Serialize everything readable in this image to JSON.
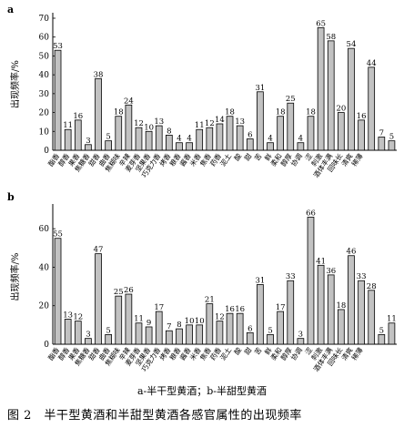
{
  "chart_data": [
    {
      "type": "bar",
      "panel_label": "a",
      "ylabel": "出现频率/%",
      "ylim": [
        0,
        70
      ],
      "yticks": [
        0,
        10,
        20,
        30,
        40,
        50,
        60,
        70
      ],
      "grid": false,
      "categories": [
        "酯香",
        "醇香",
        "果香",
        "焦糖香",
        "甜香",
        "曲香",
        "焦糊味",
        "辛辣",
        "麦芽香",
        "坚果香",
        "巧克力香",
        "烤香",
        "粮香",
        "酱香",
        "米香",
        "焦香",
        "药香",
        "泥土",
        "酸",
        "甜",
        "苦",
        "鲜",
        "柔和",
        "醇厚",
        "协调",
        "涩",
        "刺激",
        "酒体丰满",
        "回味长",
        "清爽",
        "稀薄"
      ],
      "values": [
        53,
        11,
        16,
        3,
        38,
        5,
        18,
        24,
        12,
        10,
        13,
        8,
        4,
        4,
        11,
        12,
        14,
        18,
        13,
        6,
        31,
        4,
        18,
        25,
        4,
        18,
        65,
        58,
        20,
        54,
        16
      ]
    },
    {
      "type": "bar",
      "panel_label": "b",
      "ylabel": "出现频率/%",
      "ylim": [
        0,
        70
      ],
      "yticks": [
        0,
        20,
        40,
        60
      ],
      "grid": false,
      "categories": [
        "酯香",
        "醇香",
        "果香",
        "焦糖香",
        "甜香",
        "曲香",
        "焦糊味",
        "辛辣",
        "麦芽香",
        "坚果香",
        "巧克力香",
        "烤香",
        "粮香",
        "酱香",
        "米香",
        "焦香",
        "药香",
        "泥土",
        "酸",
        "甜",
        "苦",
        "鲜",
        "柔和",
        "醇厚",
        "协调",
        "涩",
        "刺激",
        "酒体丰满",
        "回味长",
        "清爽",
        "稀薄"
      ],
      "values": [
        55,
        13,
        12,
        3,
        47,
        5,
        25,
        26,
        11,
        9,
        17,
        7,
        8,
        10,
        10,
        21,
        12,
        16,
        16,
        6,
        31,
        5,
        17,
        33,
        3,
        66,
        41,
        36,
        18,
        46,
        33
      ]
    }
  ],
  "panel_a_extra": {
    "values_tail": [
      44,
      7,
      5
    ]
  },
  "panel_b_extra": {
    "values_tail": [
      28,
      5,
      11
    ]
  },
  "legend_text": "a-半干型黄酒；b-半甜型黄酒",
  "caption": "图 2　半干型黄酒和半甜型黄酒各感官属性的出现频率"
}
